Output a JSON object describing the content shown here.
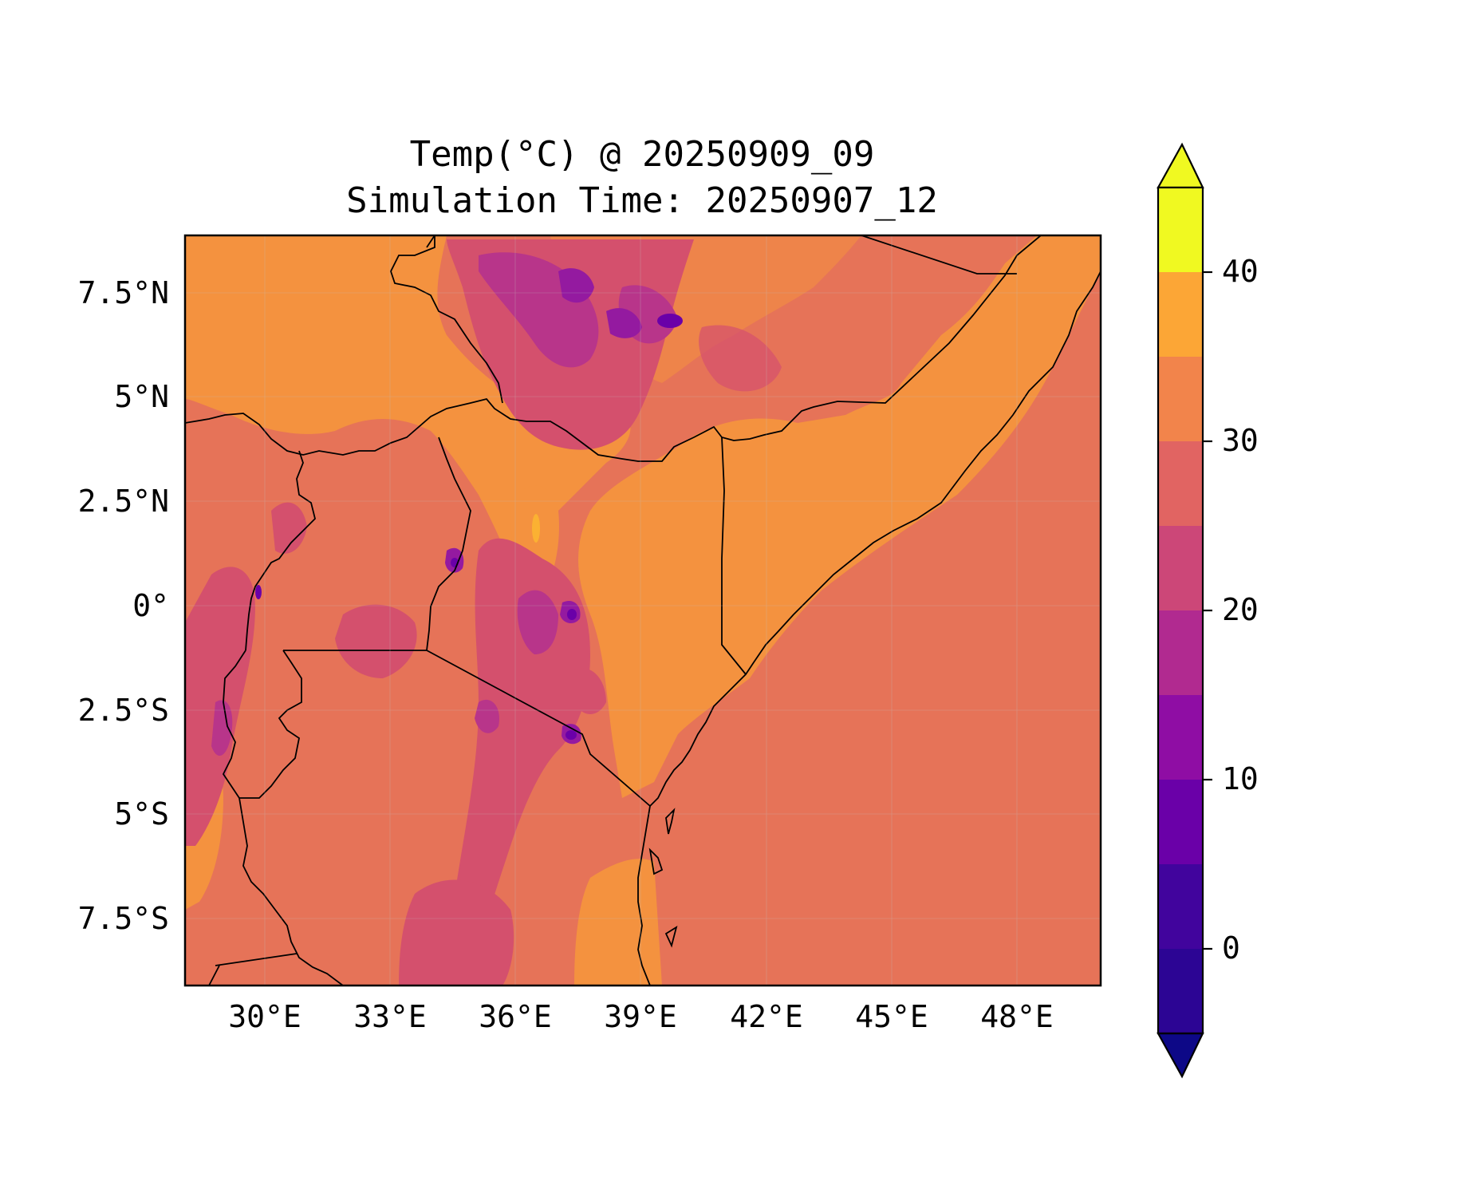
{
  "figure": {
    "title_line1": "Temp(°C) @ 20250909_09",
    "title_line2": "Simulation Time: 20250907_12"
  },
  "map": {
    "lon_range": [
      27.3,
      49.8
    ],
    "lat_range": [
      -9.0,
      9.0
    ],
    "x_ticks": [
      "30°E",
      "33°E",
      "36°E",
      "39°E",
      "42°E",
      "45°E",
      "48°E"
    ],
    "y_ticks": [
      "7.5°N",
      "5°N",
      "2.5°N",
      "0°",
      "2.5°S",
      "5°S",
      "7.5°S"
    ],
    "ocean_value_label": "25–30"
  },
  "colorbar": {
    "tick_labels": [
      "40",
      "30",
      "20",
      "10",
      "0"
    ],
    "levels": [
      -5,
      0,
      5,
      10,
      15,
      20,
      25,
      30,
      35,
      40,
      45
    ],
    "colors": [
      "#0d0887",
      "#41049d",
      "#6a00a8",
      "#8f0da4",
      "#b12a90",
      "#cc4778",
      "#e16462",
      "#f2844b",
      "#fca636",
      "#f0f921"
    ],
    "extend": "both"
  },
  "palette": {
    "band_25_30": "#e67358",
    "band_30_35": "#f4923f",
    "band_20_25": "#d4506d",
    "band_15_20": "#b8358a",
    "band_10_15": "#941aa0",
    "band_5_10": "#6a00a8",
    "band_35_40": "#fbb132"
  }
}
